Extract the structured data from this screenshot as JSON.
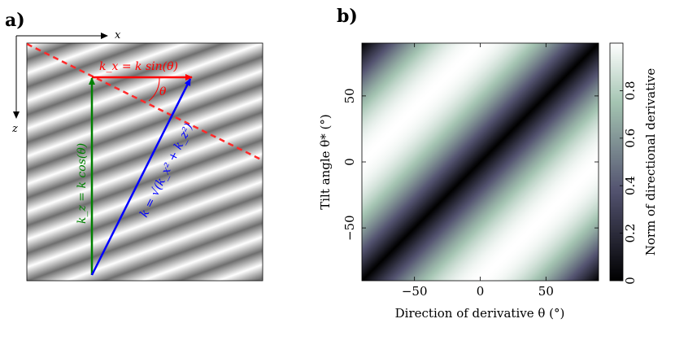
{
  "panel_a": {
    "label": "a)",
    "axis_x_label": "x",
    "axis_z_label": "z",
    "kx_label": "k_x = k sin(θ)",
    "kz_label": "k_z = k cos(θ)",
    "k_label": "k = √(k_x² + k_z²)",
    "theta_label": "θ",
    "colors": {
      "kx": "#ff0000",
      "kz": "#008000",
      "k": "#0000ff",
      "wavefront": "#ff2a2a"
    }
  },
  "panel_b": {
    "label": "b)",
    "colorbar_label": "Norm of directional derivative",
    "colorbar_ticks": [
      "0",
      "0.2",
      "0.4",
      "0.6",
      "0.8"
    ],
    "colormap": "bone"
  },
  "chart_data": {
    "type": "heatmap",
    "xlabel": "Direction of derivative θ (°)",
    "ylabel": "Tilt angle θ* (°)",
    "xlim": [
      -90,
      90
    ],
    "ylim": [
      -90,
      90
    ],
    "xticks": [
      -50,
      0,
      50
    ],
    "yticks": [
      -50,
      0,
      50
    ],
    "xtick_labels": [
      "−50",
      "0",
      "50"
    ],
    "ytick_labels": [
      "−50",
      "0",
      "50"
    ],
    "value_range": [
      0,
      1
    ],
    "function": "|sin(θ − θ*)|",
    "grid": false
  }
}
